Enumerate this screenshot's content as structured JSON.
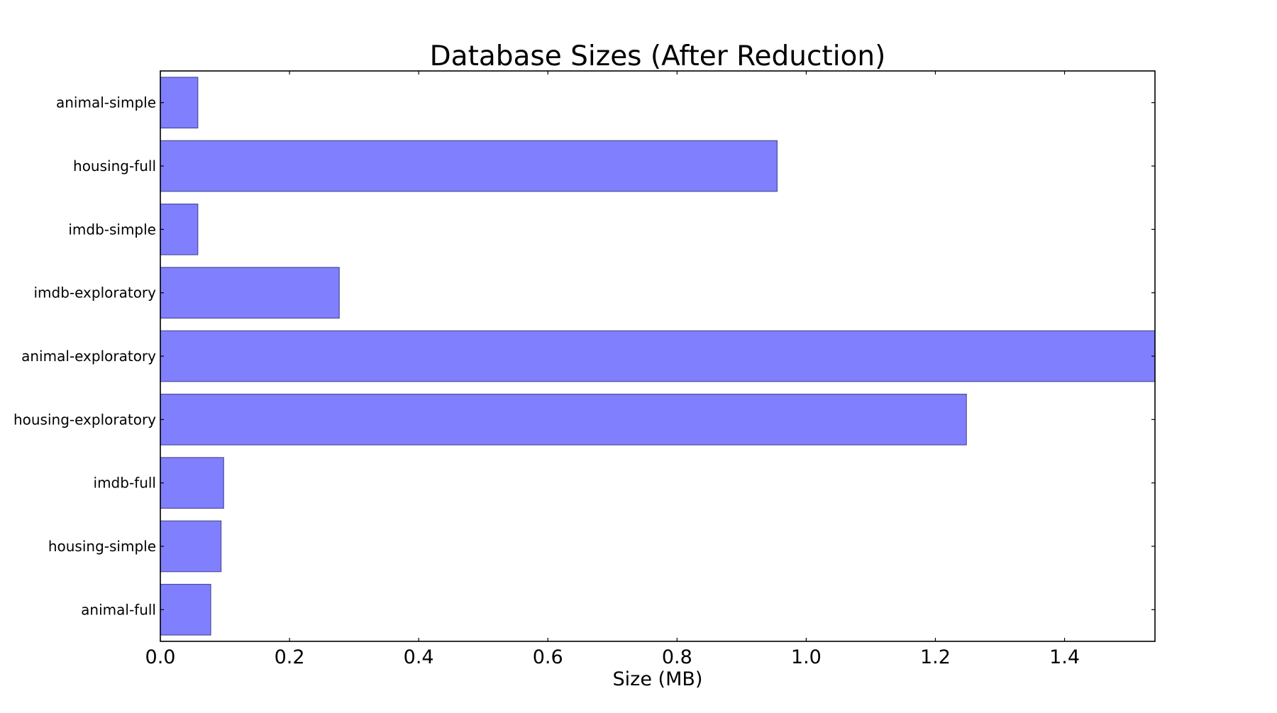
{
  "chart_data": {
    "type": "bar",
    "orientation": "horizontal",
    "title": "Database Sizes (After Reduction)",
    "xlabel": "Size (MB)",
    "ylabel": "",
    "xlim": [
      0,
      1.54
    ],
    "xticks": [
      "0.0",
      "0.2",
      "0.4",
      "0.6",
      "0.8",
      "1.0",
      "1.2",
      "1.4"
    ],
    "grid": false,
    "bar_color": "#8080ff",
    "bar_edge_color": "#4d4d99",
    "categories": [
      "animal-simple",
      "housing-full",
      "imdb-simple",
      "imdb-exploratory",
      "animal-exploratory",
      "housing-exploratory",
      "imdb-full",
      "housing-simple",
      "animal-full"
    ],
    "values": [
      0.058,
      0.955,
      0.058,
      0.277,
      1.54,
      1.248,
      0.098,
      0.094,
      0.078
    ]
  }
}
